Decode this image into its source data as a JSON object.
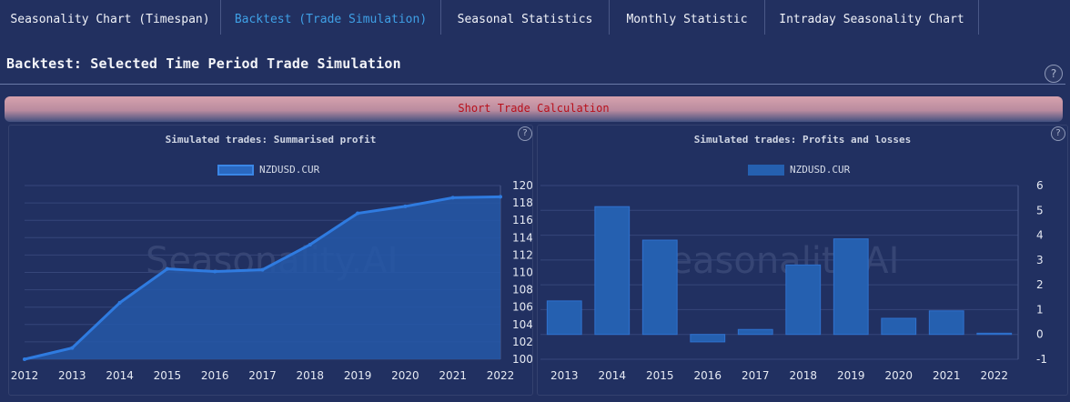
{
  "tabs": [
    {
      "label": "Seasonality Chart (Timespan)",
      "active": false
    },
    {
      "label": "Backtest (Trade Simulation)",
      "active": true
    },
    {
      "label": "Seasonal Statistics",
      "active": false
    },
    {
      "label": "Monthly Statistic",
      "active": false
    },
    {
      "label": "Intraday Seasonality Chart",
      "active": false
    }
  ],
  "page_title": "Backtest: Selected Time Period Trade Simulation",
  "help_glyph": "?",
  "trade_band_label": "Short Trade Calculation",
  "watermark": "Seasonality.AI",
  "colors": {
    "accent": "#3fa0e6",
    "series": "#2563b8",
    "band_text": "#b80f1a"
  },
  "chart_data": [
    {
      "type": "area",
      "title": "Simulated trades: Summarised profit",
      "legend": "NZDUSD.CUR",
      "x": [
        "2012",
        "2013",
        "2014",
        "2015",
        "2016",
        "2017",
        "2018",
        "2019",
        "2020",
        "2021",
        "2022"
      ],
      "series": [
        {
          "name": "NZDUSD.CUR",
          "values": [
            100,
            101.3,
            106.5,
            110.4,
            110.1,
            110.3,
            113.2,
            116.8,
            117.6,
            118.6,
            118.7
          ]
        }
      ],
      "yticks": [
        100,
        102,
        104,
        106,
        108,
        110,
        112,
        114,
        116,
        118,
        120
      ],
      "ylim": [
        100,
        120
      ],
      "y_axis_side": "right",
      "grid": true
    },
    {
      "type": "bar",
      "title": "Simulated trades: Profits and losses",
      "legend": "NZDUSD.CUR",
      "categories": [
        "2013",
        "2014",
        "2015",
        "2016",
        "2017",
        "2018",
        "2019",
        "2020",
        "2021",
        "2022"
      ],
      "series": [
        {
          "name": "NZDUSD.CUR",
          "values": [
            1.35,
            5.15,
            3.8,
            -0.3,
            0.2,
            2.8,
            3.85,
            0.65,
            0.95,
            0.05
          ]
        }
      ],
      "yticks": [
        -1,
        0,
        1,
        2,
        3,
        4,
        5,
        6
      ],
      "ylim": [
        -1,
        6
      ],
      "y_axis_side": "right",
      "grid": true
    }
  ]
}
